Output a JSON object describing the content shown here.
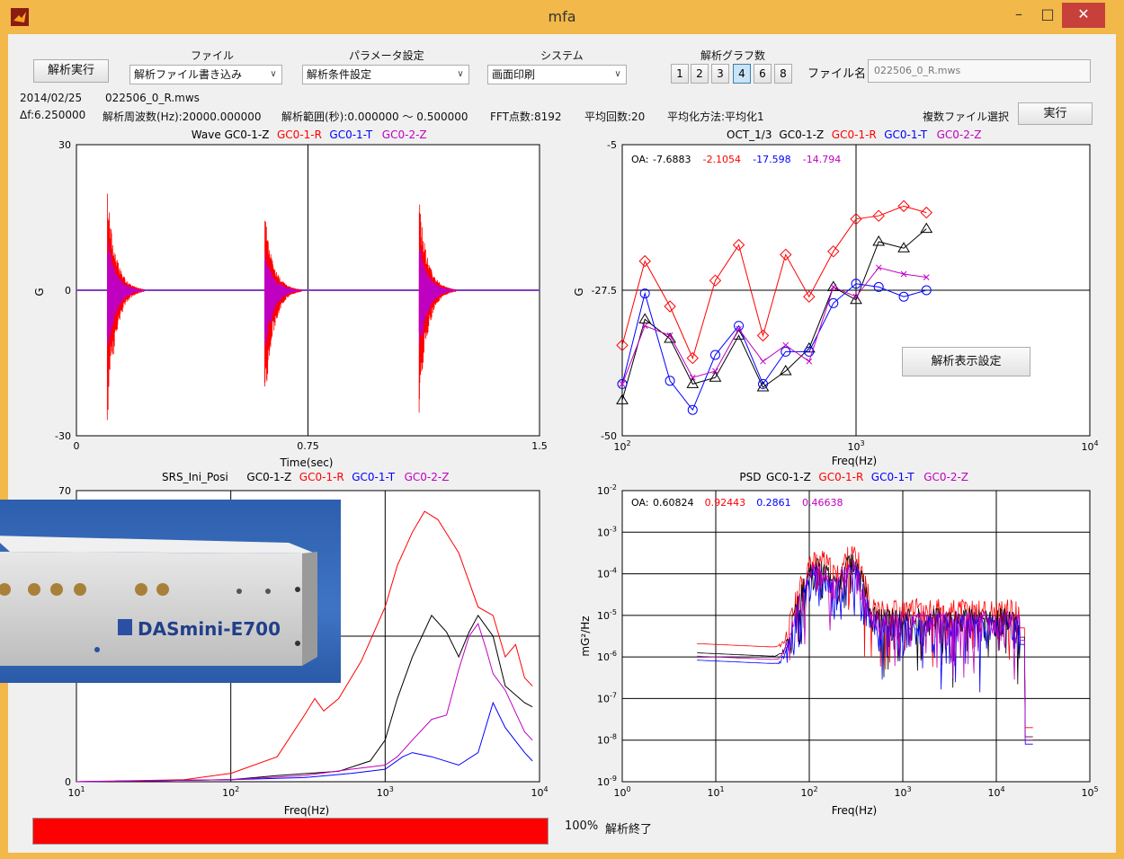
{
  "window": {
    "title": "mfa",
    "minimize": "–",
    "maximize": "□",
    "close": "✕"
  },
  "toolbar": {
    "run_button": "解析実行",
    "file_label": "ファイル",
    "file_combo": "解析ファイル書き込み",
    "param_label": "パラメータ設定",
    "param_combo": "解析条件設定",
    "system_label": "システム",
    "system_combo": "画面印刷",
    "graph_count_label": "解析グラフ数",
    "graph_counts": [
      "1",
      "2",
      "3",
      "4",
      "6",
      "8"
    ],
    "graph_count_selected": "4",
    "filename_label": "ファイル名",
    "filename_value": "022506_0_R.mws"
  },
  "info": {
    "date": "2014/02/25",
    "file": "022506_0_R.mws",
    "df": "Δf:6.250000",
    "freq": "解析周波数(Hz):20000.000000",
    "range": "解析範囲(秒):0.000000 ～ 0.500000",
    "fft": "FFT点数:8192",
    "avg_count": "平均回数:20",
    "avg_method": "平均化方法:平均化1",
    "multi_select": "複数ファイル選択",
    "exec_button": "実行"
  },
  "overlay": {
    "settings_button": "解析表示設定",
    "photo_brand": "DASmini-E700"
  },
  "status": {
    "progress": 1.0,
    "progress_text": "100%",
    "status_text": "解析終了"
  },
  "colors": {
    "gc01z": "#000000",
    "gc01r": "#ff0000",
    "gc01t": "#0000ff",
    "gc02z": "#c000c0",
    "progress": "#ff0000"
  },
  "chart_data": [
    {
      "type": "line",
      "title": "Wave",
      "series": [
        {
          "name": "GC0-1-Z"
        },
        {
          "name": "GC0-1-R"
        },
        {
          "name": "GC0-1-T"
        },
        {
          "name": "GC0-2-Z"
        }
      ],
      "xlabel": "Time(sec)",
      "ylabel": "G",
      "xlim": [
        0,
        1.5
      ],
      "ylim": [
        -30,
        30
      ],
      "xticks": [
        "0",
        "0.75",
        "1.5"
      ],
      "yticks": [
        "30",
        "0",
        "-30"
      ],
      "impulses": [
        {
          "t": 0.1,
          "peak_up": 21,
          "peak_down": -28
        },
        {
          "t": 0.61,
          "peak_up": 16,
          "peak_down": -26
        },
        {
          "t": 1.11,
          "peak_up": 19,
          "peak_down": -26
        }
      ]
    },
    {
      "type": "line",
      "title": "OCT_1/3",
      "xlabel": "Freq(Hz)",
      "ylabel": "G",
      "xscale": "log",
      "xlim": [
        100,
        10000
      ],
      "ylim": [
        -50,
        -5
      ],
      "xticks": [
        "10^2",
        "10^3",
        "10^4"
      ],
      "yticks": [
        "-5",
        "-27.5",
        "-50"
      ],
      "oa_label": "OA:",
      "series": [
        {
          "name": "GC0-1-Z",
          "oa": "-7.6883",
          "marker": "triangle",
          "x": [
            100,
            125,
            160,
            200,
            250,
            315,
            400,
            500,
            630,
            800,
            1000,
            1250,
            1600,
            2000
          ],
          "y": [
            -44.5,
            -32,
            -35,
            -42,
            -41,
            -34.5,
            -42.5,
            -40,
            -36.5,
            -27,
            -29,
            -20,
            -21,
            -18
          ]
        },
        {
          "name": "GC0-1-R",
          "oa": "-2.1054",
          "marker": "diamond",
          "x": [
            100,
            125,
            160,
            200,
            250,
            315,
            400,
            500,
            630,
            800,
            1000,
            1250,
            1600,
            2000
          ],
          "y": [
            -36,
            -23,
            -30,
            -38,
            -26,
            -20.5,
            -34.5,
            -22,
            -28.5,
            -21.5,
            -16.5,
            -16,
            -14.5,
            -15.5
          ]
        },
        {
          "name": "GC0-1-T",
          "oa": "-17.598",
          "marker": "circle",
          "x": [
            100,
            125,
            160,
            200,
            250,
            315,
            400,
            500,
            630,
            800,
            1000,
            1250,
            1600,
            2000
          ],
          "y": [
            -42,
            -28,
            -41.5,
            -46,
            -37.5,
            -33,
            -42,
            -37,
            -37,
            -29.5,
            -26.5,
            -27,
            -28.5,
            -27.5
          ]
        },
        {
          "name": "GC0-2-Z",
          "oa": "-14.794",
          "marker": "x",
          "x": [
            100,
            125,
            160,
            200,
            250,
            315,
            400,
            500,
            630,
            800,
            1000,
            1250,
            1600,
            2000
          ],
          "y": [
            -42,
            -33,
            -34.5,
            -41,
            -40,
            -33.5,
            -38.5,
            -36,
            -38.5,
            -27,
            -28.5,
            -24,
            -25,
            -25.5
          ]
        }
      ]
    },
    {
      "type": "line",
      "title": "SRS_Ini_Posi",
      "xlabel": "Freq(Hz)",
      "xscale": "log",
      "xlim": [
        10,
        10000
      ],
      "ylim": [
        0,
        70
      ],
      "xticks": [
        "10^1",
        "10^2",
        "10^3",
        "10^4"
      ],
      "yticks": [
        "70",
        "0"
      ],
      "series": [
        {
          "name": "GC0-1-Z",
          "x": [
            10,
            100,
            200,
            500,
            800,
            1000,
            1200,
            1500,
            2000,
            2500,
            3000,
            3500,
            4000,
            5000,
            6000,
            8000,
            9000
          ],
          "y": [
            0,
            0.5,
            1.5,
            2.5,
            5,
            10,
            20,
            30,
            40,
            36,
            30,
            36,
            40,
            35,
            23,
            19,
            18
          ]
        },
        {
          "name": "GC0-1-R",
          "x": [
            10,
            50,
            100,
            200,
            300,
            350,
            400,
            500,
            700,
            1000,
            1200,
            1500,
            1800,
            2200,
            3000,
            4000,
            5000,
            6000,
            7000,
            8000,
            9000
          ],
          "y": [
            0,
            0.5,
            2,
            6,
            16,
            20,
            17,
            20,
            29,
            42,
            52,
            60,
            65,
            63,
            55,
            42,
            40,
            30,
            33,
            25,
            23
          ]
        },
        {
          "name": "GC0-1-T",
          "x": [
            10,
            100,
            300,
            600,
            1000,
            1300,
            1500,
            2000,
            3000,
            4000,
            5000,
            6000,
            8000,
            9000
          ],
          "y": [
            0,
            0.5,
            1,
            2,
            3,
            6,
            7,
            6,
            4,
            7,
            19,
            13,
            7,
            5
          ]
        },
        {
          "name": "GC0-2-Z",
          "x": [
            10,
            100,
            300,
            600,
            1000,
            1200,
            1500,
            2000,
            2500,
            3000,
            3500,
            4000,
            4500,
            5000,
            6000,
            8000,
            9000
          ],
          "y": [
            0,
            0.5,
            1.5,
            3,
            4,
            6,
            10,
            15,
            16,
            27,
            35,
            38,
            32,
            26,
            22,
            12,
            10
          ]
        }
      ]
    },
    {
      "type": "line",
      "title": "PSD",
      "xlabel": "Freq(Hz)",
      "ylabel": "mG²/Hz",
      "xscale": "log",
      "yscale": "log",
      "xlim": [
        1,
        100000
      ],
      "ylim": [
        1e-09,
        0.01
      ],
      "xticks": [
        "10^0",
        "10^1",
        "10^2",
        "10^3",
        "10^4",
        "10^5"
      ],
      "yticks": [
        "10^-2",
        "10^-3",
        "10^-4",
        "10^-5",
        "10^-6",
        "10^-7",
        "10^-8",
        "10^-9"
      ],
      "oa_label": "OA:",
      "series": [
        {
          "name": "GC0-1-Z",
          "oa": "0.60824"
        },
        {
          "name": "GC0-1-R",
          "oa": "0.92443"
        },
        {
          "name": "GC0-1-T",
          "oa": "0.2861"
        },
        {
          "name": "GC0-2-Z",
          "oa": "0.46638"
        }
      ]
    }
  ]
}
